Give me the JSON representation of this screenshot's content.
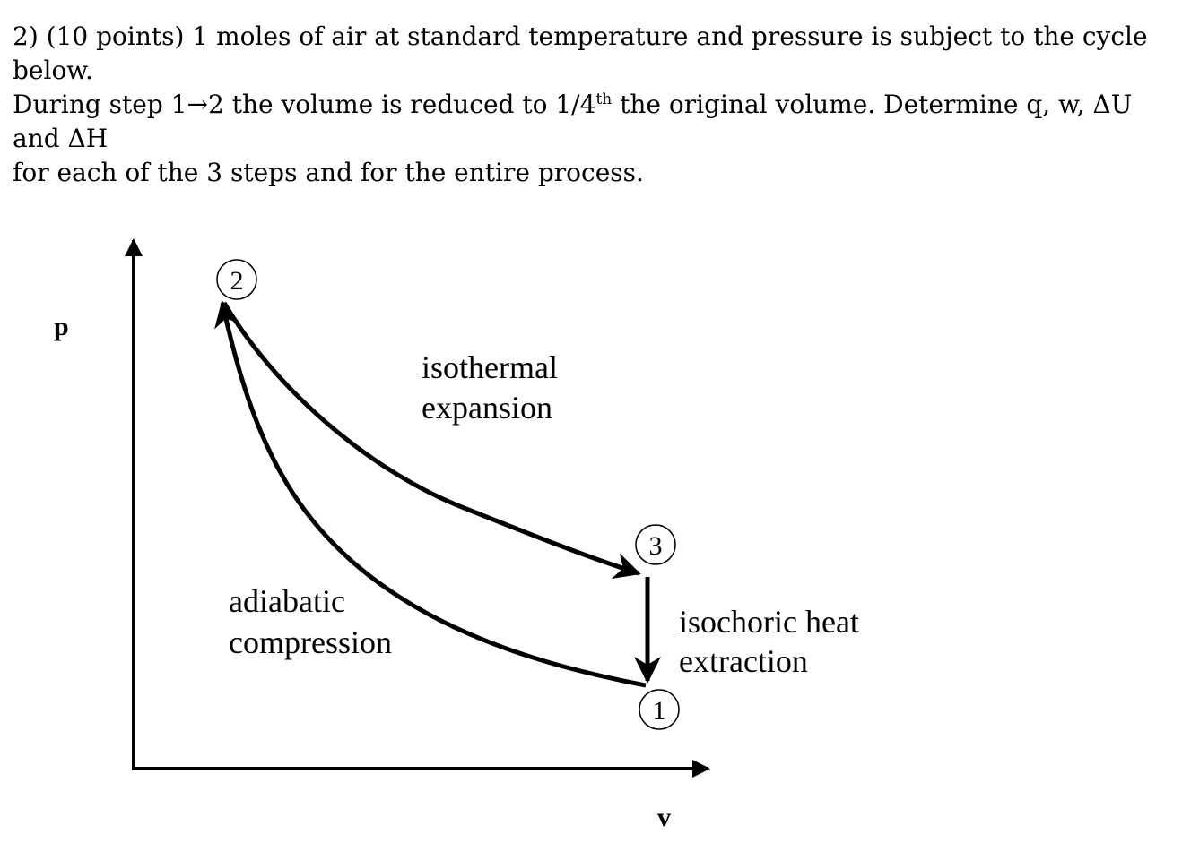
{
  "question": {
    "line1": "2) (10 points) 1 moles of air at standard temperature and pressure is subject to the cycle below.",
    "line2_a": "During step 1",
    "line2_arrow": "→",
    "line2_b": "2 the volume is reduced to 1/4",
    "line2_sup": "th",
    "line2_c": " the original volume. Determine q, w, ΔU and ΔH",
    "line3": "for each of the 3 steps and for the entire process."
  },
  "diagram": {
    "axis_y_label": "p",
    "axis_x_label": "v",
    "states": [
      "1",
      "2",
      "3"
    ],
    "processes": {
      "isothermal": [
        "isothermal",
        "expansion"
      ],
      "adiabatic": [
        "adiabatic",
        "compression"
      ],
      "isochoric": [
        "isochoric heat",
        "extraction"
      ]
    }
  }
}
